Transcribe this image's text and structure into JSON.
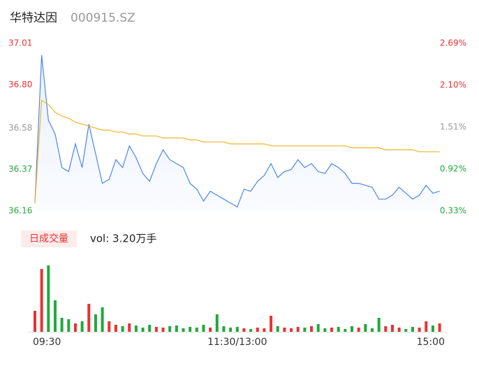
{
  "chart_data": {
    "type": "intraday",
    "title": "华特达因",
    "subtitle": "000915.SZ",
    "volume_button": "日成交量",
    "volume_text": "vol: 3.20万手",
    "xlim": [
      0,
      241
    ],
    "xticks": [
      {
        "value": 0,
        "label": "09:30"
      },
      {
        "value": 120,
        "label": "11:30/13:00"
      },
      {
        "value": 241,
        "label": "15:00"
      }
    ],
    "ylim": [
      36.16,
      37.01
    ],
    "yticks": [
      {
        "value": 37.01,
        "label": "37.01"
      },
      {
        "value": 36.8,
        "label": "36.80"
      },
      36.58,
      36.37,
      36.16
    ],
    "y2lim": [
      0.33,
      2.69
    ],
    "y2ticks": [
      {
        "value": 2.69,
        "label": "2.69%"
      },
      {
        "value": 2.1,
        "label": "2.10%"
      },
      {
        "value": 1.51,
        "label": "1.51%"
      },
      {
        "value": 0.92,
        "label": "0.92%"
      },
      {
        "value": 0.33,
        "label": "0.33%"
      }
    ],
    "x": [
      0,
      4,
      8,
      12,
      16,
      20,
      24,
      28,
      32,
      36,
      40,
      44,
      48,
      52,
      56,
      60,
      64,
      68,
      72,
      76,
      80,
      84,
      88,
      92,
      96,
      100,
      104,
      108,
      112,
      116,
      120,
      124,
      128,
      132,
      136,
      140,
      144,
      148,
      152,
      156,
      160,
      164,
      168,
      172,
      176,
      180,
      184,
      188,
      192,
      196,
      200,
      204,
      208,
      212,
      216,
      220,
      224,
      228,
      232,
      236,
      240
    ],
    "series": [
      {
        "name": "price",
        "color": "#4a86e8",
        "values": [
          36.2,
          36.95,
          36.62,
          36.55,
          36.38,
          36.36,
          36.5,
          36.38,
          36.6,
          36.45,
          36.3,
          36.32,
          36.42,
          36.38,
          36.49,
          36.43,
          36.35,
          36.31,
          36.4,
          36.47,
          36.42,
          36.4,
          36.38,
          36.3,
          36.27,
          36.21,
          36.26,
          36.24,
          36.22,
          36.2,
          36.18,
          36.27,
          36.26,
          36.31,
          36.34,
          36.4,
          36.33,
          36.36,
          36.37,
          36.42,
          36.38,
          36.4,
          36.36,
          36.35,
          36.4,
          36.38,
          36.35,
          36.3,
          36.3,
          36.29,
          36.28,
          36.22,
          36.22,
          36.24,
          36.28,
          36.25,
          36.22,
          36.24,
          36.29,
          36.25,
          36.26
        ]
      },
      {
        "name": "average",
        "color": "#f0b429",
        "values": [
          36.2,
          36.72,
          36.7,
          36.66,
          36.64,
          36.63,
          36.61,
          36.6,
          36.59,
          36.58,
          36.57,
          36.57,
          36.56,
          36.56,
          36.55,
          36.55,
          36.54,
          36.54,
          36.54,
          36.53,
          36.53,
          36.53,
          36.53,
          36.52,
          36.52,
          36.51,
          36.51,
          36.51,
          36.51,
          36.5,
          36.5,
          36.5,
          36.5,
          36.5,
          36.5,
          36.49,
          36.49,
          36.49,
          36.49,
          36.49,
          36.49,
          36.49,
          36.49,
          36.49,
          36.49,
          36.49,
          36.49,
          36.48,
          36.48,
          36.48,
          36.48,
          36.48,
          36.47,
          36.47,
          36.47,
          36.47,
          36.47,
          36.46,
          36.46,
          36.46,
          36.46
        ]
      }
    ],
    "volume": {
      "ylim": [
        0,
        1000
      ],
      "up_color": "#e83232",
      "down_color": "#21a83a",
      "values": [
        300,
        900,
        950,
        450,
        200,
        180,
        120,
        150,
        400,
        250,
        350,
        150,
        100,
        80,
        120,
        90,
        60,
        100,
        70,
        60,
        80,
        90,
        50,
        70,
        60,
        100,
        60,
        250,
        80,
        60,
        70,
        50,
        40,
        60,
        50,
        230,
        80,
        60,
        50,
        70,
        60,
        80,
        110,
        50,
        60,
        70,
        40,
        80,
        60,
        110,
        50,
        200,
        80,
        100,
        60,
        40,
        70,
        60,
        150,
        90,
        120
      ]
    },
    "up_color": "#e83232",
    "down_color": "#21a83a",
    "flat_color": "#999999"
  }
}
